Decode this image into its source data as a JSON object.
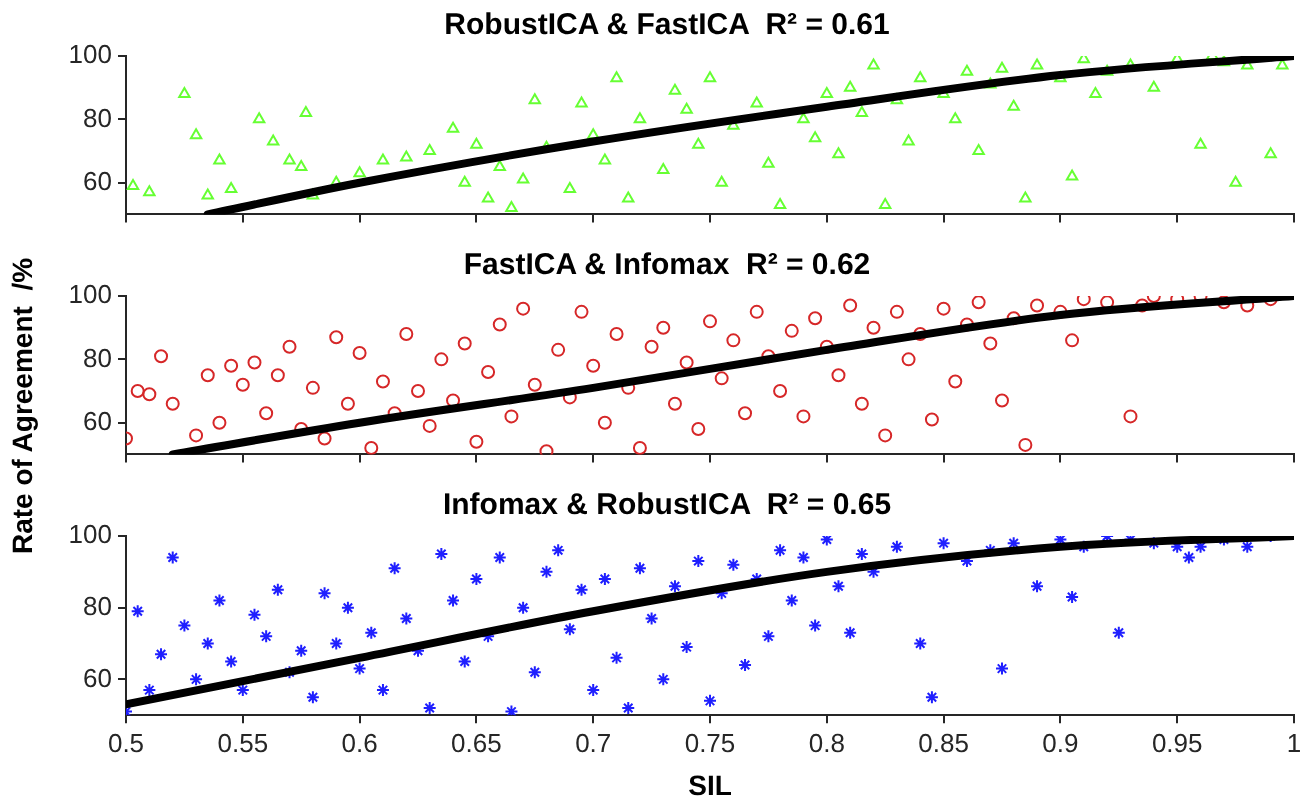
{
  "chart_data": [
    {
      "type": "scatter",
      "title": "RobustICA & FastICA  R² = 0.61",
      "xlim": [
        0.5,
        1
      ],
      "xticks": [
        0.5,
        0.55,
        0.6,
        0.65,
        0.7,
        0.75,
        0.8,
        0.85,
        0.9,
        0.95,
        1
      ],
      "ylim": [
        50,
        100
      ],
      "yticks": [
        60,
        80,
        100
      ],
      "tick_labels": "y",
      "grid": false,
      "legend": false,
      "series": [
        {
          "type": "scatter",
          "color": "#66ff33",
          "marker": "triangle",
          "x": [
            0.503,
            0.51,
            0.525,
            0.53,
            0.535,
            0.54,
            0.545,
            0.557,
            0.563,
            0.57,
            0.575,
            0.577,
            0.58,
            0.59,
            0.6,
            0.61,
            0.62,
            0.63,
            0.64,
            0.645,
            0.65,
            0.655,
            0.66,
            0.665,
            0.67,
            0.675,
            0.68,
            0.69,
            0.695,
            0.7,
            0.705,
            0.71,
            0.715,
            0.72,
            0.73,
            0.735,
            0.74,
            0.745,
            0.75,
            0.755,
            0.76,
            0.77,
            0.775,
            0.78,
            0.79,
            0.795,
            0.8,
            0.805,
            0.81,
            0.815,
            0.82,
            0.825,
            0.83,
            0.835,
            0.84,
            0.85,
            0.855,
            0.86,
            0.865,
            0.87,
            0.875,
            0.88,
            0.885,
            0.89,
            0.9,
            0.905,
            0.91,
            0.915,
            0.92,
            0.93,
            0.94,
            0.95,
            0.96,
            0.965,
            0.97,
            0.975,
            0.98,
            0.99,
            0.995
          ],
          "values": [
            59,
            57,
            88,
            75,
            56,
            67,
            58,
            80,
            73,
            67,
            65,
            82,
            56,
            60,
            63,
            67,
            68,
            70,
            77,
            60,
            72,
            55,
            65,
            52,
            61,
            86,
            71,
            58,
            85,
            75,
            67,
            93,
            55,
            80,
            64,
            89,
            83,
            72,
            93,
            60,
            78,
            85,
            66,
            53,
            80,
            74,
            88,
            69,
            90,
            82,
            97,
            53,
            86,
            73,
            93,
            88,
            80,
            95,
            70,
            91,
            96,
            84,
            55,
            97,
            93,
            62,
            99,
            88,
            95,
            97,
            90,
            99,
            72,
            100,
            98,
            60,
            97,
            69,
            97
          ]
        },
        {
          "type": "line",
          "color": "#000000",
          "marker": "none",
          "x": [
            0.535,
            0.6,
            0.7,
            0.8,
            0.9,
            1
          ],
          "values": [
            50,
            60,
            73,
            84,
            94,
            100
          ]
        }
      ]
    },
    {
      "type": "scatter",
      "title": "FastICA & Infomax  R² = 0.62",
      "ylabel": "Rate of Agreement  /%",
      "xlim": [
        0.5,
        1
      ],
      "xticks": [
        0.5,
        0.55,
        0.6,
        0.65,
        0.7,
        0.75,
        0.8,
        0.85,
        0.9,
        0.95,
        1
      ],
      "ylim": [
        50,
        100
      ],
      "yticks": [
        60,
        80,
        100
      ],
      "tick_labels": "y",
      "grid": false,
      "legend": false,
      "series": [
        {
          "type": "scatter",
          "color": "#d62728",
          "marker": "circle",
          "x": [
            0.5,
            0.505,
            0.51,
            0.515,
            0.52,
            0.53,
            0.535,
            0.54,
            0.545,
            0.55,
            0.555,
            0.56,
            0.565,
            0.57,
            0.575,
            0.58,
            0.585,
            0.59,
            0.595,
            0.6,
            0.605,
            0.61,
            0.615,
            0.62,
            0.625,
            0.63,
            0.635,
            0.64,
            0.645,
            0.65,
            0.655,
            0.66,
            0.665,
            0.67,
            0.675,
            0.68,
            0.685,
            0.69,
            0.695,
            0.7,
            0.705,
            0.71,
            0.715,
            0.72,
            0.725,
            0.73,
            0.735,
            0.74,
            0.745,
            0.75,
            0.755,
            0.76,
            0.765,
            0.77,
            0.775,
            0.78,
            0.785,
            0.79,
            0.795,
            0.8,
            0.805,
            0.81,
            0.815,
            0.82,
            0.825,
            0.83,
            0.835,
            0.84,
            0.845,
            0.85,
            0.855,
            0.86,
            0.865,
            0.87,
            0.875,
            0.88,
            0.885,
            0.89,
            0.9,
            0.905,
            0.91,
            0.92,
            0.93,
            0.935,
            0.94,
            0.95,
            0.96,
            0.97,
            0.98,
            0.99
          ],
          "values": [
            55,
            70,
            69,
            81,
            66,
            56,
            75,
            60,
            78,
            72,
            79,
            63,
            75,
            84,
            58,
            71,
            55,
            87,
            66,
            82,
            52,
            73,
            63,
            88,
            70,
            59,
            80,
            67,
            85,
            54,
            76,
            91,
            62,
            96,
            72,
            51,
            83,
            68,
            95,
            78,
            60,
            88,
            71,
            52,
            84,
            90,
            66,
            79,
            58,
            92,
            74,
            86,
            63,
            95,
            81,
            70,
            89,
            62,
            93,
            84,
            75,
            97,
            66,
            90,
            56,
            95,
            80,
            88,
            61,
            96,
            73,
            91,
            98,
            85,
            67,
            93,
            53,
            97,
            95,
            86,
            99,
            98,
            62,
            97,
            100,
            99,
            100,
            98,
            97,
            99
          ]
        },
        {
          "type": "line",
          "color": "#000000",
          "marker": "none",
          "x": [
            0.52,
            0.6,
            0.7,
            0.8,
            0.9,
            1
          ],
          "values": [
            50,
            60,
            71,
            83,
            94,
            100
          ]
        }
      ]
    },
    {
      "type": "scatter",
      "title": "Infomax & RobustICA  R² = 0.65",
      "xlabel": "SIL",
      "xlim": [
        0.5,
        1
      ],
      "xticks": [
        0.5,
        0.55,
        0.6,
        0.65,
        0.7,
        0.75,
        0.8,
        0.85,
        0.9,
        0.95,
        1
      ],
      "ylim": [
        50,
        100
      ],
      "yticks": [
        60,
        80,
        100
      ],
      "grid": false,
      "legend": false,
      "series": [
        {
          "type": "scatter",
          "color": "#1f1fff",
          "marker": "cross",
          "x": [
            0.5,
            0.505,
            0.51,
            0.515,
            0.52,
            0.525,
            0.53,
            0.535,
            0.54,
            0.545,
            0.55,
            0.555,
            0.56,
            0.565,
            0.57,
            0.575,
            0.58,
            0.585,
            0.59,
            0.595,
            0.6,
            0.605,
            0.61,
            0.615,
            0.62,
            0.625,
            0.63,
            0.635,
            0.64,
            0.645,
            0.65,
            0.655,
            0.66,
            0.665,
            0.67,
            0.675,
            0.68,
            0.685,
            0.69,
            0.695,
            0.7,
            0.705,
            0.71,
            0.715,
            0.72,
            0.725,
            0.73,
            0.735,
            0.74,
            0.745,
            0.75,
            0.755,
            0.76,
            0.765,
            0.77,
            0.775,
            0.78,
            0.785,
            0.79,
            0.795,
            0.8,
            0.805,
            0.81,
            0.815,
            0.82,
            0.83,
            0.84,
            0.845,
            0.85,
            0.86,
            0.87,
            0.875,
            0.88,
            0.89,
            0.9,
            0.905,
            0.91,
            0.92,
            0.925,
            0.93,
            0.94,
            0.95,
            0.955,
            0.96,
            0.97,
            0.98,
            0.99
          ],
          "values": [
            51,
            79,
            57,
            67,
            94,
            75,
            60,
            70,
            82,
            65,
            57,
            78,
            72,
            85,
            62,
            68,
            55,
            84,
            70,
            80,
            63,
            73,
            57,
            91,
            77,
            68,
            52,
            95,
            82,
            65,
            88,
            72,
            94,
            51,
            80,
            62,
            90,
            96,
            74,
            85,
            57,
            88,
            66,
            52,
            91,
            77,
            60,
            86,
            69,
            93,
            54,
            84,
            92,
            64,
            88,
            72,
            96,
            82,
            94,
            75,
            99,
            86,
            73,
            95,
            90,
            97,
            70,
            55,
            98,
            93,
            96,
            63,
            98,
            86,
            99,
            83,
            97,
            100,
            73,
            99,
            98,
            97,
            94,
            97,
            99,
            97,
            100
          ]
        },
        {
          "type": "line",
          "color": "#000000",
          "marker": "none",
          "x": [
            0.5,
            0.6,
            0.7,
            0.8,
            0.9,
            1
          ],
          "values": [
            53,
            66,
            79,
            90,
            97,
            100
          ]
        }
      ]
    }
  ]
}
